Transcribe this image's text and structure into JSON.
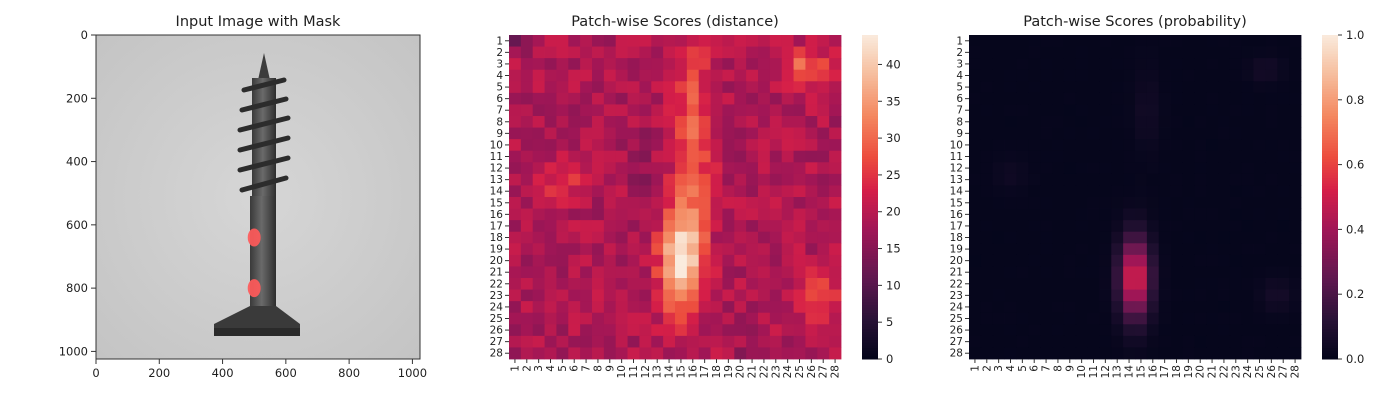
{
  "chart_data": [
    {
      "type": "image",
      "title": "Input Image with Mask",
      "xlim": [
        0,
        1024
      ],
      "ylim": [
        0,
        1024
      ],
      "x_ticks": [
        "0",
        "200",
        "400",
        "600",
        "800",
        "1000"
      ],
      "y_ticks": [
        "0",
        "200",
        "400",
        "600",
        "800",
        "1000"
      ],
      "image_subject": "screw",
      "mask_regions": [
        {
          "x": 500,
          "y": 640
        },
        {
          "x": 500,
          "y": 800
        }
      ],
      "mask_color": "#ff5a5a"
    },
    {
      "type": "heatmap",
      "title": "Patch-wise Scores (distance)",
      "grid_size": 28,
      "x_ticks": [
        "1",
        "2",
        "3",
        "4",
        "5",
        "6",
        "7",
        "8",
        "9",
        "10",
        "11",
        "12",
        "13",
        "14",
        "15",
        "16",
        "17",
        "18",
        "19",
        "20",
        "21",
        "22",
        "23",
        "24",
        "25",
        "26",
        "27",
        "28"
      ],
      "y_ticks": [
        "1",
        "2",
        "3",
        "4",
        "5",
        "6",
        "7",
        "8",
        "9",
        "10",
        "11",
        "12",
        "13",
        "14",
        "15",
        "16",
        "17",
        "18",
        "19",
        "20",
        "21",
        "22",
        "23",
        "24",
        "25",
        "26",
        "27",
        "28"
      ],
      "colorbar_range": [
        0,
        44
      ],
      "colorbar_ticks": [
        "0",
        "5",
        "10",
        "15",
        "20",
        "25",
        "30",
        "35",
        "40"
      ],
      "colorbar_tick_values": [
        0,
        5,
        10,
        15,
        20,
        25,
        30,
        35,
        40
      ],
      "colormap": "rocket",
      "baseline": 19,
      "hot_spots": [
        {
          "col": 15,
          "row": 20,
          "peak": 24,
          "sx": 1.2,
          "sy": 3.0
        },
        {
          "col": 16,
          "row": 10,
          "peak": 11,
          "sx": 1.1,
          "sy": 6.0
        },
        {
          "col": 25.5,
          "row": 3.5,
          "peak": 11,
          "sx": 1.5,
          "sy": 1.2
        },
        {
          "col": 26.5,
          "row": 23,
          "peak": 9,
          "sx": 1.2,
          "sy": 1.5
        },
        {
          "col": 5,
          "row": 13,
          "peak": 6,
          "sx": 1.3,
          "sy": 1.3
        },
        {
          "col": 1,
          "row": 1,
          "peak": -7,
          "sx": 0.6,
          "sy": 0.6
        },
        {
          "col": 11.5,
          "row": 12,
          "peak": -5,
          "sx": 0.6,
          "sy": 2.0
        },
        {
          "col": 21,
          "row": 28,
          "peak": -5,
          "sx": 0.8,
          "sy": 0.6
        }
      ]
    },
    {
      "type": "heatmap",
      "title": "Patch-wise Scores (probability)",
      "grid_size": 28,
      "x_ticks": [
        "1",
        "2",
        "3",
        "4",
        "5",
        "6",
        "7",
        "8",
        "9",
        "10",
        "11",
        "12",
        "13",
        "14",
        "15",
        "16",
        "17",
        "18",
        "19",
        "20",
        "21",
        "22",
        "23",
        "24",
        "25",
        "26",
        "27",
        "28"
      ],
      "y_ticks": [
        "1",
        "2",
        "3",
        "4",
        "5",
        "6",
        "7",
        "8",
        "9",
        "10",
        "11",
        "12",
        "13",
        "14",
        "15",
        "16",
        "17",
        "18",
        "19",
        "20",
        "21",
        "22",
        "23",
        "24",
        "25",
        "26",
        "27",
        "28"
      ],
      "colorbar_range": [
        0,
        1.0
      ],
      "colorbar_ticks": [
        "0.0",
        "0.2",
        "0.4",
        "0.6",
        "0.8",
        "1.0"
      ],
      "colorbar_tick_values": [
        0,
        0.2,
        0.4,
        0.6,
        0.8,
        1.0
      ],
      "colormap": "rocket",
      "baseline": 0.01,
      "hot_spots": [
        {
          "col": 14.5,
          "row": 21.5,
          "peak": 0.55,
          "sx": 0.9,
          "sy": 2.4
        },
        {
          "col": 15.5,
          "row": 7,
          "peak": 0.04,
          "sx": 0.8,
          "sy": 2.5
        },
        {
          "col": 25.5,
          "row": 3.5,
          "peak": 0.05,
          "sx": 1.0,
          "sy": 0.8
        },
        {
          "col": 26.5,
          "row": 23,
          "peak": 0.05,
          "sx": 1.0,
          "sy": 1.0
        },
        {
          "col": 4,
          "row": 12.5,
          "peak": 0.03,
          "sx": 1.0,
          "sy": 1.0
        }
      ]
    }
  ]
}
